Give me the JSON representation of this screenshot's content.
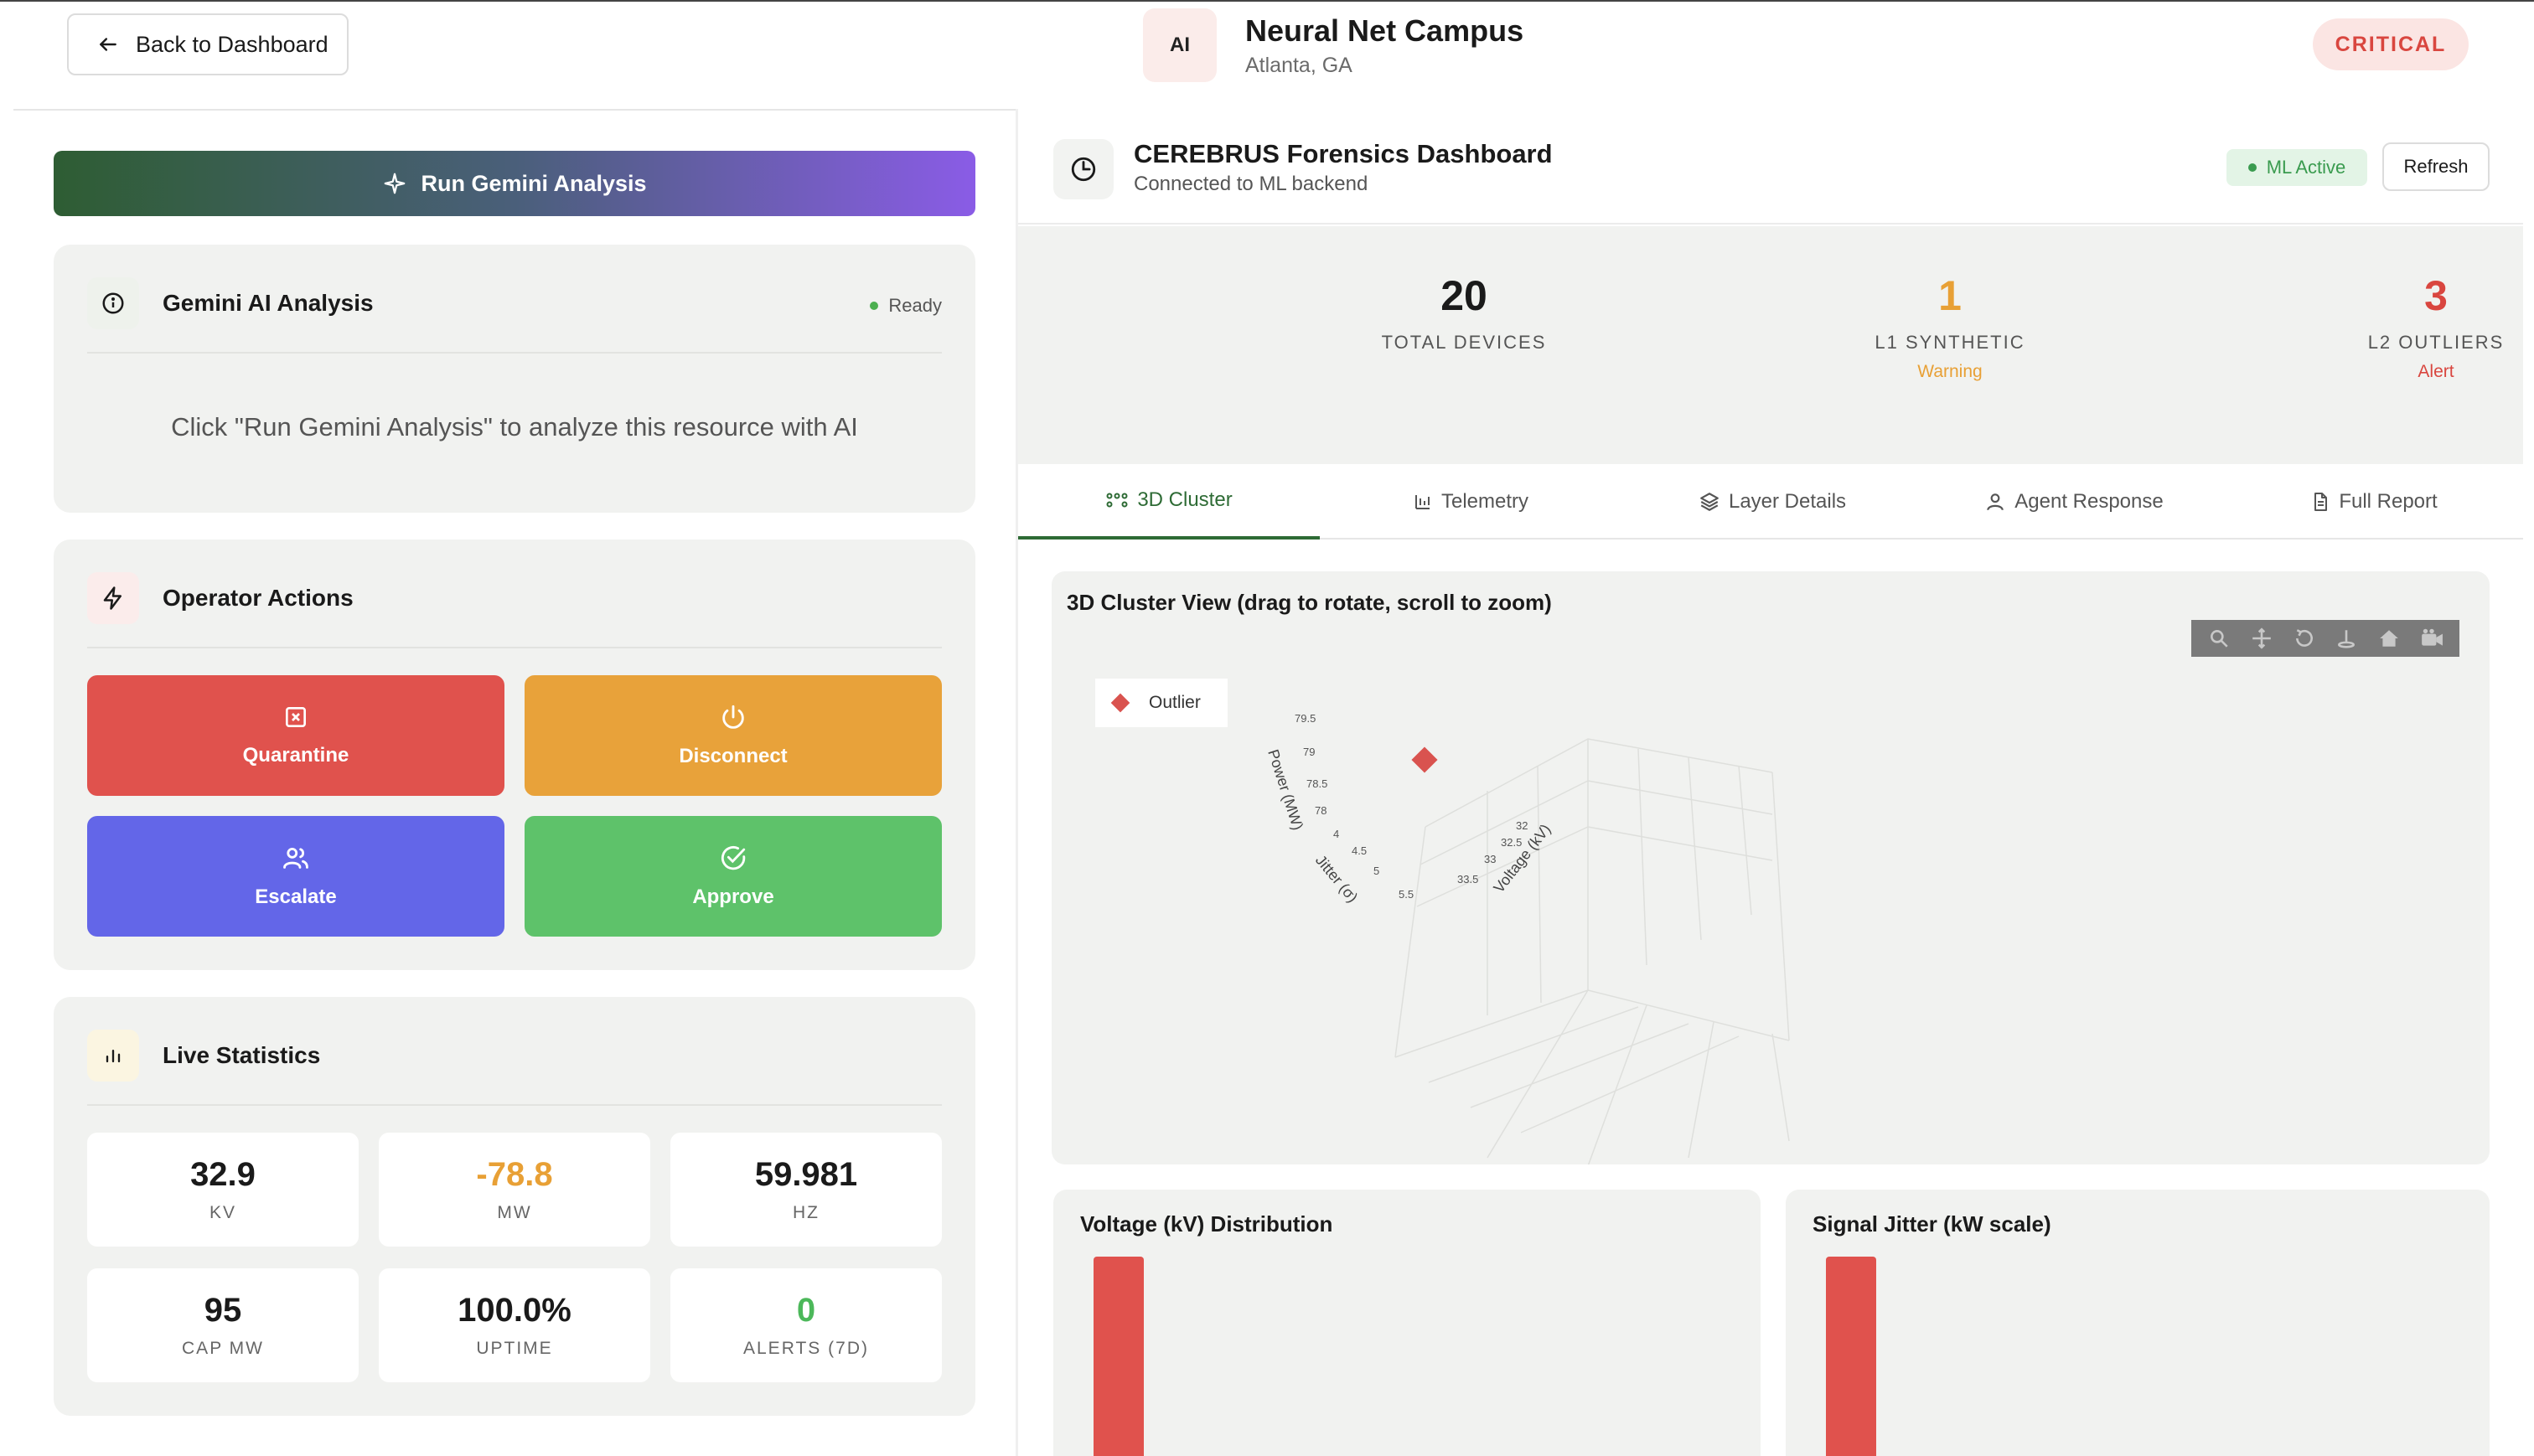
{
  "header": {
    "back_label": "Back to Dashboard",
    "avatar_text": "AI",
    "site_name": "Neural Net Campus",
    "site_location": "Atlanta, GA",
    "severity": "CRITICAL"
  },
  "left": {
    "run_button": "Run Gemini Analysis",
    "gemini": {
      "title": "Gemini AI Analysis",
      "status": "Ready",
      "message": "Click \"Run Gemini Analysis\" to analyze this resource with AI"
    },
    "actions": {
      "title": "Operator Actions",
      "quarantine": "Quarantine",
      "disconnect": "Disconnect",
      "escalate": "Escalate",
      "approve": "Approve"
    },
    "stats": {
      "title": "Live Statistics",
      "items": [
        {
          "value": "32.9",
          "label": "KV"
        },
        {
          "value": "-78.8",
          "label": "MW"
        },
        {
          "value": "59.981",
          "label": "HZ"
        },
        {
          "value": "95",
          "label": "CAP MW"
        },
        {
          "value": "100.0%",
          "label": "UPTIME"
        },
        {
          "value": "0",
          "label": "ALERTS (7D)"
        }
      ]
    }
  },
  "right": {
    "title": "CEREBRUS Forensics Dashboard",
    "subtitle": "Connected to ML backend",
    "ml_status": "ML Active",
    "refresh_label": "Refresh",
    "summary": [
      {
        "value": "20",
        "label": "TOTAL DEVICES",
        "sub": ""
      },
      {
        "value": "1",
        "label": "L1 SYNTHETIC",
        "sub": "Warning"
      },
      {
        "value": "3",
        "label": "L2 OUTLIERS",
        "sub": "Alert"
      }
    ],
    "tabs": [
      "3D Cluster",
      "Telemetry",
      "Layer Details",
      "Agent Response",
      "Full Report"
    ],
    "cluster": {
      "title": "3D Cluster View (drag to rotate, scroll to zoom)",
      "legend": "Outlier",
      "axes": {
        "power_label": "Power (MW)",
        "jitter_label": "Jitter (σ)",
        "voltage_label": "Voltage (kV)",
        "power_ticks": [
          "79.5",
          "79",
          "78.5",
          "78"
        ],
        "jitter_ticks": [
          "4",
          "4.5",
          "5",
          "5.5"
        ],
        "voltage_ticks": [
          "32",
          "32.5",
          "33",
          "33.5"
        ]
      }
    },
    "voltage_dist_title": "Voltage (kV) Distribution",
    "jitter_dist_title": "Signal Jitter (kW scale)"
  },
  "colors": {
    "critical": "#d9463f",
    "warning": "#e8a035",
    "alert": "#d9463f",
    "quarantine": "#e0524d",
    "disconnect": "#e8a23a",
    "escalate": "#6366e8",
    "approve": "#5ec26a",
    "accent": "#2e6b35"
  }
}
